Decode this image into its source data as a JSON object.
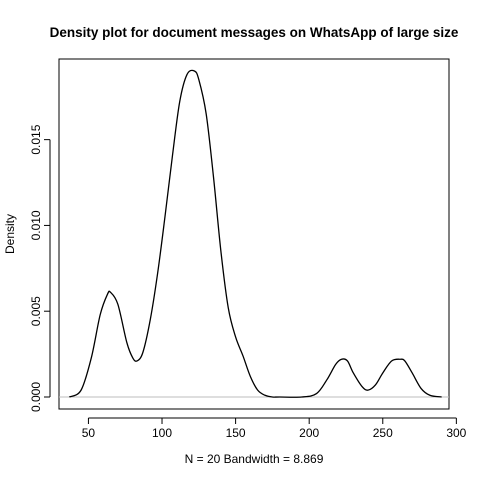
{
  "chart_data": {
    "type": "line",
    "title": "Density plot for document messages on WhatsApp of large size",
    "xlabel": "N = 20   Bandwidth = 8.869",
    "ylabel": "Density",
    "xlim": [
      30,
      295
    ],
    "ylim": [
      -0.0007,
      0.0197
    ],
    "x_ticks": [
      50,
      100,
      150,
      200,
      250,
      300
    ],
    "y_ticks": [
      0.0,
      0.005,
      0.01,
      0.015
    ],
    "y_tick_labels": [
      "0.000",
      "0.005",
      "0.010",
      "0.015"
    ],
    "grid": false,
    "legend": "none",
    "series": [
      {
        "x": [
          37,
          45,
          52,
          58,
          63,
          65,
          70,
          76,
          80,
          83,
          87,
          92,
          97,
          102,
          107,
          112,
          117,
          122,
          125,
          130,
          135,
          140,
          145,
          150,
          155,
          160,
          165,
          170,
          175,
          180,
          195,
          205,
          212,
          218,
          222,
          226,
          230,
          236,
          240,
          245,
          250,
          256,
          262,
          265,
          270,
          276,
          282,
          290
        ],
        "y": [
          0.0,
          0.0004,
          0.0023,
          0.0048,
          0.006,
          0.0061,
          0.0054,
          0.0032,
          0.0023,
          0.0021,
          0.0026,
          0.0045,
          0.0072,
          0.0105,
          0.014,
          0.0172,
          0.0188,
          0.019,
          0.0185,
          0.0165,
          0.0128,
          0.0085,
          0.0052,
          0.0035,
          0.0024,
          0.0012,
          0.0004,
          0.0001,
          0.0,
          0.0,
          0.0,
          0.0002,
          0.001,
          0.0019,
          0.0022,
          0.0021,
          0.0014,
          0.0006,
          0.0004,
          0.0007,
          0.0014,
          0.0021,
          0.0022,
          0.0021,
          0.0014,
          0.0005,
          0.0001,
          0.0
        ]
      }
    ]
  }
}
